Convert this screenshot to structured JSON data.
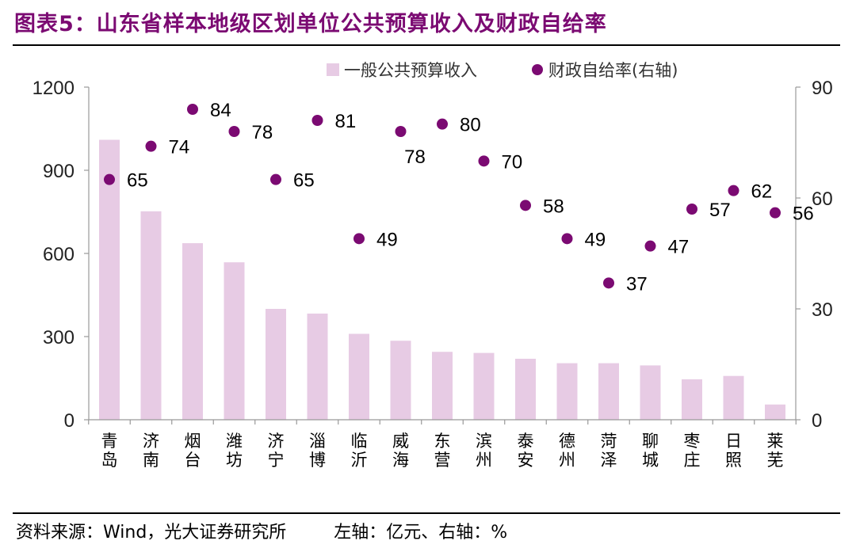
{
  "header": {
    "title": "图表5：山东省样本地级区划单位公共预算收入及财政自给率"
  },
  "footer": {
    "source": "资料来源：Wind，光大证券研究所",
    "units": "左轴：亿元、右轴：%"
  },
  "colors": {
    "bar": "#e7cbe4",
    "dot": "#7b0a72",
    "title": "#7b0a72",
    "axis": "#999999"
  },
  "chart_data": {
    "type": "bar",
    "categories": [
      "青岛",
      "济南",
      "烟台",
      "潍坊",
      "济宁",
      "淄博",
      "临沂",
      "威海",
      "东营",
      "滨州",
      "泰安",
      "德州",
      "菏泽",
      "聊城",
      "枣庄",
      "日照",
      "莱芜"
    ],
    "series": [
      {
        "name": "一般公共预算收入",
        "type": "bar",
        "axis": "left",
        "values": [
          1010,
          752,
          637,
          568,
          400,
          383,
          310,
          285,
          245,
          241,
          220,
          204,
          204,
          196,
          146,
          158,
          55
        ]
      },
      {
        "name": "财政自给率(右轴)",
        "type": "scatter",
        "axis": "right",
        "values": [
          65,
          74,
          84,
          78,
          65,
          81,
          49,
          78,
          80,
          70,
          58,
          49,
          37,
          47,
          57,
          62,
          56
        ]
      }
    ],
    "left_axis": {
      "ylim": [
        0,
        1200
      ],
      "ticks": [
        0,
        300,
        600,
        900,
        1200
      ]
    },
    "right_axis": {
      "ylim": [
        0,
        90
      ],
      "ticks": [
        0,
        30,
        60,
        90
      ]
    },
    "legend": {
      "position": "top-right",
      "items": [
        "一般公共预算收入",
        "财政自给率(右轴)"
      ]
    }
  }
}
